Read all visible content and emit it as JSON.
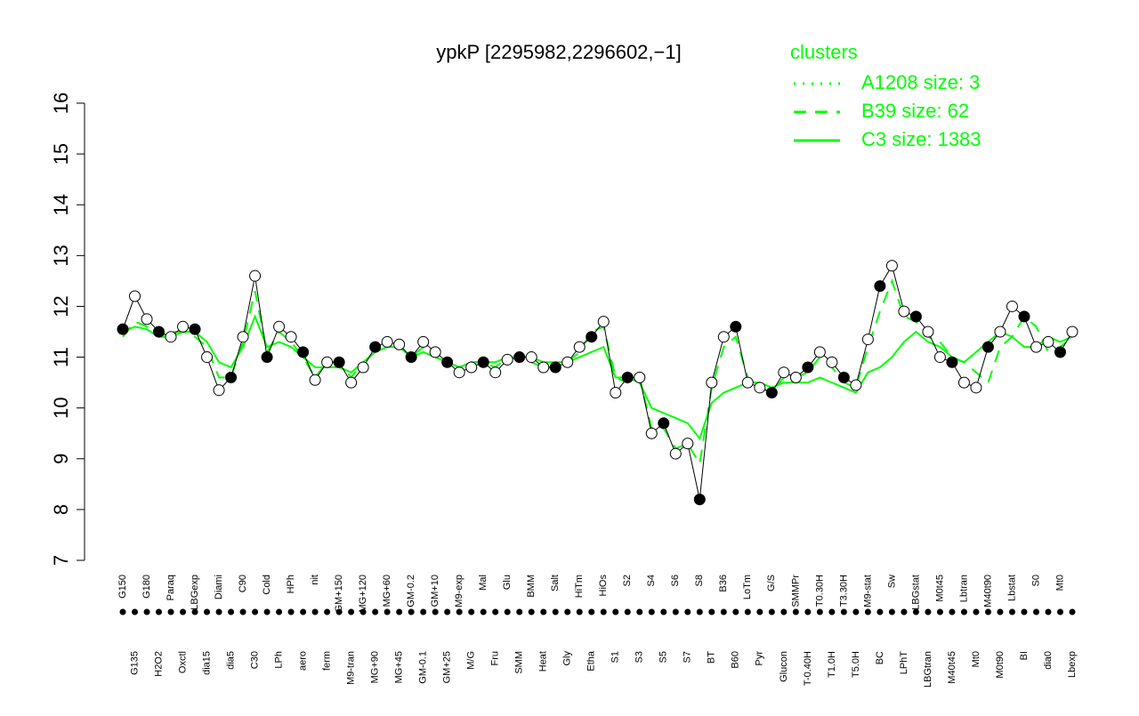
{
  "chart_data": {
    "type": "line",
    "title": "ypkP [2295982,2296602,−1]",
    "categories": [
      "G150",
      "G135",
      "G180",
      "H2O2",
      "Paraq",
      "Oxctl",
      "LBGexp",
      "dia15",
      "Diami",
      "dia5",
      "C90",
      "C30",
      "Cold",
      "LPh",
      "HPh",
      "aero",
      "nit",
      "ferm",
      "GM+150",
      "M9-tran",
      "MG+120",
      "MG+90",
      "MG+60",
      "MG+45",
      "GM-0.2",
      "GM-0.1",
      "GM+10",
      "GM+25",
      "M9-exp",
      "M/G",
      "Mal",
      "Fru",
      "Glu",
      "SMM",
      "BMM",
      "Heat",
      "Salt",
      "Gly",
      "HiTm",
      "Etha",
      "HiOs",
      "S1",
      "S2",
      "S3",
      "S4",
      "S5",
      "S6",
      "S7",
      "S8",
      "BT",
      "B36",
      "B60",
      "LoTm",
      "Pyr",
      "G/S",
      "Glucon",
      "SMMPr",
      "T-0.40H",
      "T0.30H",
      "T1.0H",
      "T3.30H",
      "T5.0H",
      "M9-stat",
      "BC",
      "Sw",
      "LPhT",
      "LBGstat",
      "LBGtran",
      "M0t45",
      "M40t45",
      "Lbtran",
      "Mt0",
      "M40t90",
      "M0t90",
      "Lbstat",
      "BI",
      "S0",
      "dia0",
      "Mt0",
      "Lbexp"
    ],
    "values": [
      11.55,
      12.2,
      11.75,
      11.5,
      11.4,
      11.6,
      11.55,
      11.0,
      10.35,
      10.6,
      11.4,
      12.6,
      11.0,
      11.6,
      11.4,
      11.1,
      10.55,
      10.9,
      10.9,
      10.5,
      10.8,
      11.2,
      11.3,
      11.25,
      11.0,
      11.3,
      11.1,
      10.9,
      10.7,
      10.8,
      10.9,
      10.7,
      10.95,
      11.0,
      11.0,
      10.8,
      10.8,
      10.9,
      11.2,
      11.4,
      11.7,
      10.3,
      10.6,
      10.6,
      9.5,
      9.7,
      9.1,
      9.3,
      8.2,
      10.5,
      11.4,
      11.6,
      10.5,
      10.4,
      10.3,
      10.7,
      10.6,
      10.8,
      11.1,
      10.9,
      10.6,
      10.45,
      11.35,
      12.4,
      12.8,
      11.9,
      11.8,
      11.5,
      11.0,
      10.9,
      10.5,
      10.4,
      11.2,
      11.5,
      12.0,
      11.8,
      11.2,
      11.3,
      11.1,
      11.5
    ],
    "series": [
      {
        "color": "#00ff00",
        "dash": "dashed",
        "values": [
          11.4,
          11.7,
          11.6,
          11.4,
          11.5,
          11.5,
          11.4,
          11.2,
          10.6,
          10.6,
          11.3,
          12.3,
          11.1,
          11.5,
          11.3,
          11.0,
          10.6,
          10.9,
          10.9,
          10.6,
          10.9,
          11.1,
          11.2,
          11.2,
          11.0,
          11.2,
          11.0,
          10.9,
          10.8,
          10.9,
          10.9,
          10.8,
          11.0,
          11.0,
          10.9,
          10.8,
          10.8,
          10.9,
          11.1,
          11.5,
          11.6,
          10.6,
          10.5,
          10.6,
          9.6,
          9.6,
          9.2,
          9.3,
          8.9,
          10.4,
          11.2,
          11.4,
          10.6,
          10.4,
          10.3,
          10.6,
          10.6,
          10.7,
          11.0,
          10.8,
          10.5,
          10.4,
          11.2,
          11.9,
          12.5,
          11.8,
          11.7,
          11.4,
          11.3,
          11.0,
          10.9,
          10.7,
          10.5,
          11.2,
          11.4,
          11.8,
          11.6,
          11.1,
          11.2,
          11.4
        ]
      },
      {
        "color": "#00ff00",
        "dash": "solid",
        "values": [
          11.5,
          11.6,
          11.55,
          11.4,
          11.4,
          11.5,
          11.5,
          11.3,
          10.9,
          10.8,
          11.2,
          11.8,
          11.2,
          11.3,
          11.2,
          11.0,
          10.8,
          10.8,
          10.8,
          10.7,
          10.9,
          11.1,
          11.2,
          11.2,
          11.0,
          11.1,
          11.0,
          10.9,
          10.8,
          10.9,
          10.9,
          10.9,
          11.0,
          11.0,
          11.0,
          10.9,
          10.9,
          10.9,
          11.0,
          11.1,
          11.2,
          10.6,
          10.6,
          10.5,
          10.0,
          9.9,
          9.8,
          9.7,
          9.4,
          10.1,
          10.3,
          10.4,
          10.5,
          10.5,
          10.4,
          10.5,
          10.5,
          10.5,
          10.6,
          10.5,
          10.4,
          10.3,
          10.7,
          10.8,
          11.0,
          11.3,
          11.5,
          11.3,
          11.2,
          11.0,
          10.9,
          11.1,
          11.3,
          11.5,
          11.4,
          11.2,
          11.2,
          11.4,
          11.3,
          11.4
        ]
      }
    ],
    "legend": {
      "title": "clusters",
      "color": "#00ff00",
      "entries": [
        {
          "name": "A1208 size: 3",
          "dash": "dotted"
        },
        {
          "name": "B39 size: 62",
          "dash": "dashed"
        },
        {
          "name": "C3 size: 1383",
          "dash": "solid"
        }
      ]
    },
    "ylim": [
      7,
      16
    ],
    "yticks": [
      7,
      8,
      9,
      10,
      11,
      12,
      13,
      14,
      15,
      16
    ]
  }
}
